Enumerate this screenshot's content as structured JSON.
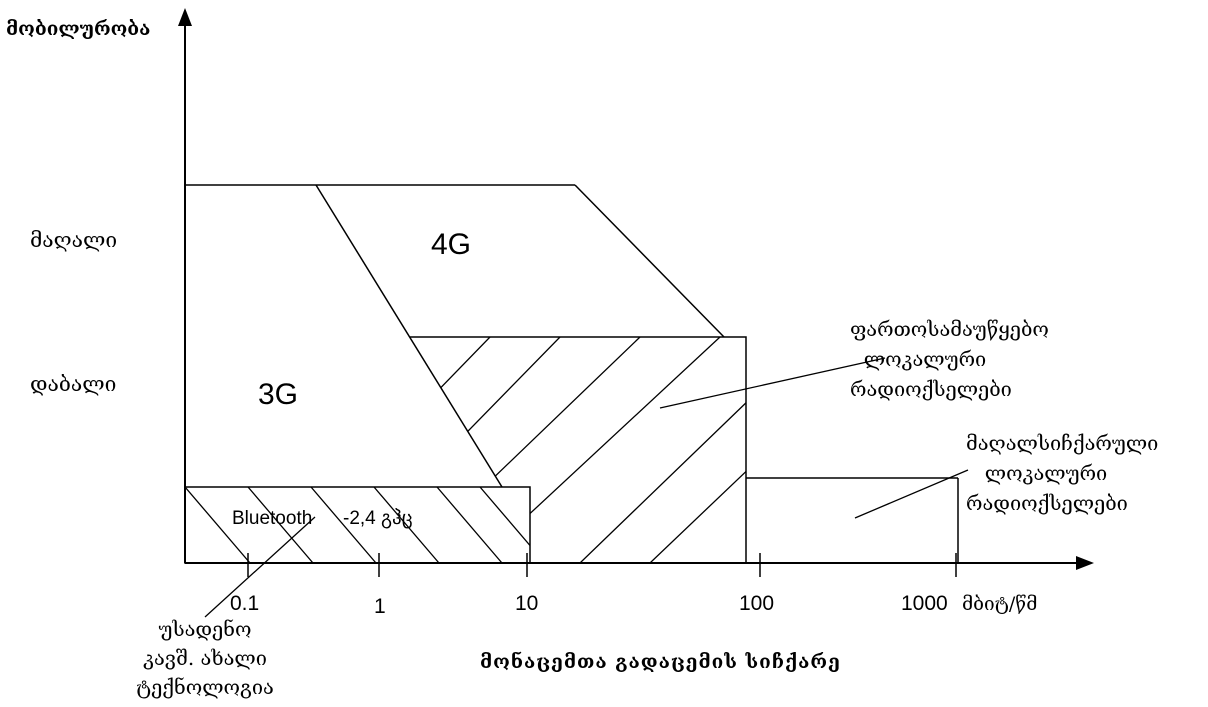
{
  "axes": {
    "y_title": "მობილურობა",
    "x_title": "მონაცემთა გადაცემის სიჩქარე",
    "y_levels": [
      "მაღალი",
      "დაბალი"
    ],
    "x_ticks": [
      "0.1",
      "1",
      "10",
      "100",
      "1000"
    ],
    "x_unit": "მბიტ/წმ"
  },
  "regions": {
    "r3g": "3G",
    "r4g": "4G",
    "bluetooth": "Bluetooth",
    "bluetooth_freq": "-2,4 გჰც"
  },
  "notes": {
    "wlan": [
      "ფართოსამაუწყებო",
      "ლოკალური",
      "რადიოქსელები"
    ],
    "hiperlan": [
      "მაღალსიჩქარული",
      "ლოკალური",
      "რადიოქსელები"
    ],
    "wireless": [
      "უსადენო",
      "კავშ. ახალი",
      "ტექნოლოგია"
    ]
  },
  "colors": {
    "line": "#000000",
    "background": "#ffffff"
  }
}
